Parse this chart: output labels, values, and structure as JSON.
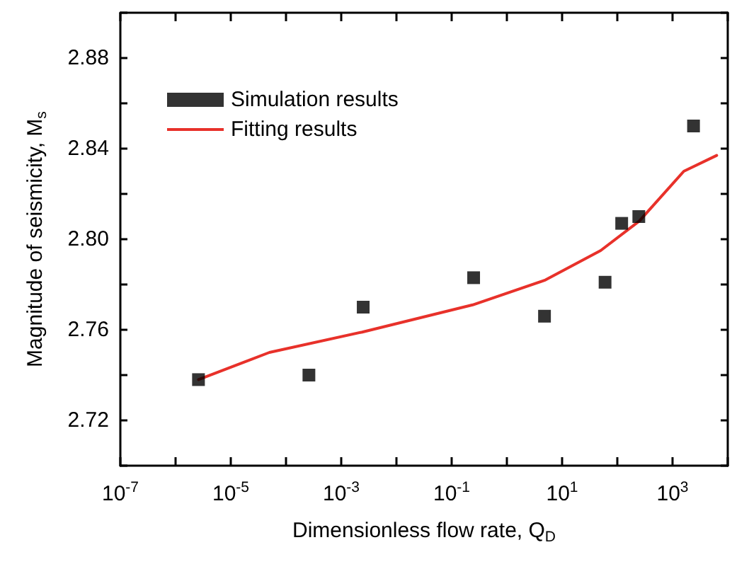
{
  "chart_data": {
    "type": "scatter",
    "xlabel": "Dimensionless flow rate, Q$_{D}$",
    "ylabel": "Magnitude of seismicity, M$_{s}$",
    "log": "x",
    "xlim": [
      1e-07,
      10000
    ],
    "ylim": [
      2.7,
      2.9
    ],
    "xticks": [
      {
        "value": 1e-07,
        "label": "10$^{-7}$"
      },
      {
        "value": 1e-06,
        "label": null
      },
      {
        "value": 1e-05,
        "label": "10$^{-5}$"
      },
      {
        "value": 0.0001,
        "label": null
      },
      {
        "value": 0.001,
        "label": "10$^{-3}$"
      },
      {
        "value": 0.01,
        "label": null
      },
      {
        "value": 0.1,
        "label": "10$^{-1}$"
      },
      {
        "value": 1,
        "label": null
      },
      {
        "value": 10,
        "label": "10$^{1}$"
      },
      {
        "value": 100,
        "label": null
      },
      {
        "value": 1000,
        "label": "10$^{3}$"
      },
      {
        "value": 10000,
        "label": null
      }
    ],
    "yticks": [
      {
        "value": 2.7,
        "label": null
      },
      {
        "value": 2.72,
        "label": "2.72"
      },
      {
        "value": 2.74,
        "label": null
      },
      {
        "value": 2.76,
        "label": "2.76"
      },
      {
        "value": 2.78,
        "label": null
      },
      {
        "value": 2.8,
        "label": "2.80"
      },
      {
        "value": 2.82,
        "label": null
      },
      {
        "value": 2.84,
        "label": "2.84"
      },
      {
        "value": 2.86,
        "label": null
      },
      {
        "value": 2.88,
        "label": "2.88"
      },
      {
        "value": 2.9,
        "label": null
      }
    ],
    "legend": "top left",
    "grid": false,
    "series": [
      {
        "name": "Simulation results",
        "marker": "square",
        "color": "#000000",
        "x": [
          2.6e-06,
          0.00026,
          0.0025,
          0.25,
          4.8,
          60,
          120,
          245,
          2400
        ],
        "values": [
          2.738,
          2.74,
          2.77,
          2.783,
          2.766,
          2.781,
          2.807,
          2.81,
          2.85
        ]
      },
      {
        "name": "Fitting results",
        "type": "line",
        "marker": "none",
        "line_style": "solid",
        "color": "#e8312a",
        "x": [
          2.6e-06,
          5e-05,
          0.0024,
          0.24,
          5,
          50,
          250,
          1600,
          6300
        ],
        "values": [
          2.738,
          2.75,
          2.759,
          2.771,
          2.782,
          2.795,
          2.808,
          2.83,
          2.837
        ]
      }
    ]
  }
}
